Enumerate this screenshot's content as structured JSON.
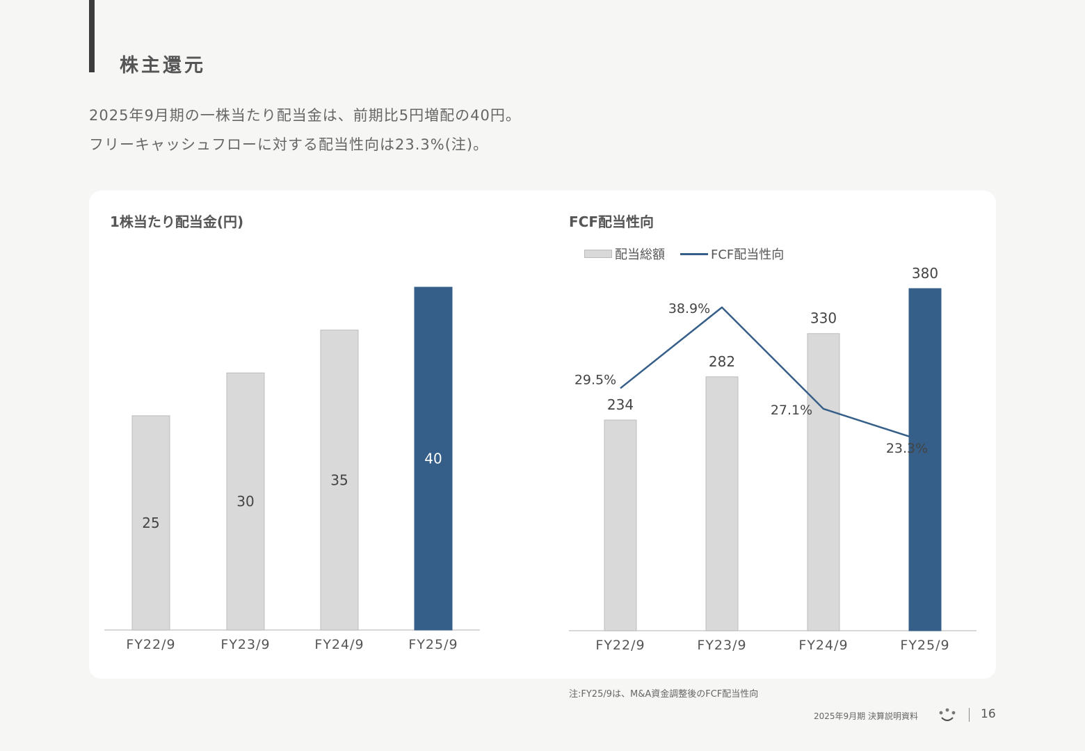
{
  "header": {
    "title": "株主還元",
    "lead_line1": "2025年9月期の一株当たり配当金は、前期比5円増配の40円。",
    "lead_line2": "フリーキャッシュフローに対する配当性向は23.3%(注)。"
  },
  "colors": {
    "bar_default": "#d9d9d9",
    "bar_highlight": "#355e88",
    "line": "#355e88"
  },
  "chart_data": [
    {
      "type": "bar",
      "title": "1株当たり配当金(円)",
      "categories": [
        "FY22/9",
        "FY23/9",
        "FY24/9",
        "FY25/9"
      ],
      "values": [
        25,
        30,
        35,
        40
      ],
      "data_labels": [
        "25",
        "30",
        "35",
        "40"
      ],
      "highlight_index": 3,
      "ylim": [
        0,
        40
      ],
      "grid": false
    },
    {
      "type": "bar",
      "title": "FCF配当性向",
      "categories": [
        "FY22/9",
        "FY23/9",
        "FY24/9",
        "FY25/9"
      ],
      "series": [
        {
          "name": "配当総額",
          "type": "bar",
          "values": [
            234,
            282,
            330,
            380
          ],
          "data_labels": [
            "234",
            "282",
            "330",
            "380"
          ]
        },
        {
          "name": "FCF配当性向",
          "type": "line",
          "values": [
            29.5,
            38.9,
            27.1,
            23.3
          ],
          "data_labels": [
            "29.5%",
            "38.9%",
            "27.1%",
            "23.3%"
          ]
        }
      ],
      "highlight_index": 3,
      "legend": "top-left",
      "grid": false
    }
  ],
  "note": "注:FY25/9は、M&A資金調整後のFCF配当性向",
  "footer": {
    "doc_title": "2025年9月期 決算説明資料",
    "page_number": "16",
    "logo_icon": "smile-face-icon"
  }
}
